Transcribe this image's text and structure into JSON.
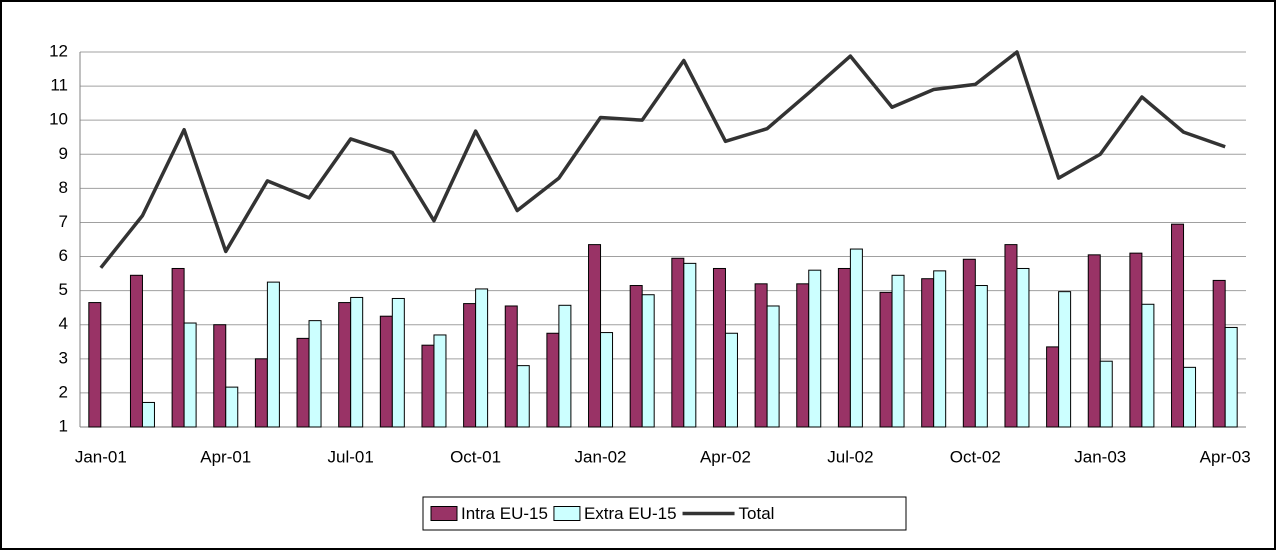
{
  "chart_data": {
    "type": "bar-line",
    "categories": [
      "Jan-01",
      null,
      null,
      "Apr-01",
      null,
      null,
      "Jul-01",
      null,
      null,
      "Oct-01",
      null,
      null,
      "Jan-02",
      null,
      null,
      "Apr-02",
      null,
      null,
      "Jul-02",
      null,
      null,
      "Oct-02",
      null,
      null,
      "Jan-03",
      null,
      null,
      "Apr-03"
    ],
    "series": [
      {
        "name": "Intra EU-15",
        "type": "bar",
        "color": "#993366",
        "values": [
          4.65,
          5.45,
          5.65,
          4.0,
          3.0,
          3.6,
          4.65,
          4.25,
          3.4,
          4.62,
          4.55,
          3.75,
          6.35,
          5.15,
          5.95,
          5.65,
          5.2,
          5.2,
          5.65,
          4.95,
          5.35,
          5.92,
          6.35,
          3.35,
          6.05,
          6.1,
          6.95,
          5.3
        ]
      },
      {
        "name": "Extra EU-15",
        "type": "bar",
        "color": "#ccffff",
        "values": [
          null,
          1.72,
          4.05,
          2.17,
          5.25,
          4.12,
          4.8,
          4.77,
          3.7,
          5.05,
          2.8,
          4.57,
          3.77,
          4.88,
          5.8,
          3.75,
          4.55,
          5.6,
          6.22,
          5.45,
          5.58,
          5.15,
          5.65,
          4.97,
          2.93,
          4.6,
          2.75,
          3.92
        ]
      },
      {
        "name": "Total",
        "type": "line",
        "color": "#333333",
        "values": [
          5.67,
          7.2,
          9.72,
          6.15,
          8.22,
          7.72,
          9.45,
          9.05,
          7.05,
          9.68,
          7.35,
          8.3,
          10.08,
          10.0,
          11.75,
          9.38,
          9.75,
          10.8,
          11.88,
          10.38,
          10.9,
          11.05,
          12.0,
          8.3,
          9.0,
          10.68,
          9.65,
          9.22
        ]
      }
    ],
    "ylim": [
      1,
      12
    ],
    "yticks": [
      1,
      2,
      3,
      4,
      5,
      6,
      7,
      8,
      9,
      10,
      11,
      12
    ],
    "grid": true,
    "legend": "bottom"
  }
}
